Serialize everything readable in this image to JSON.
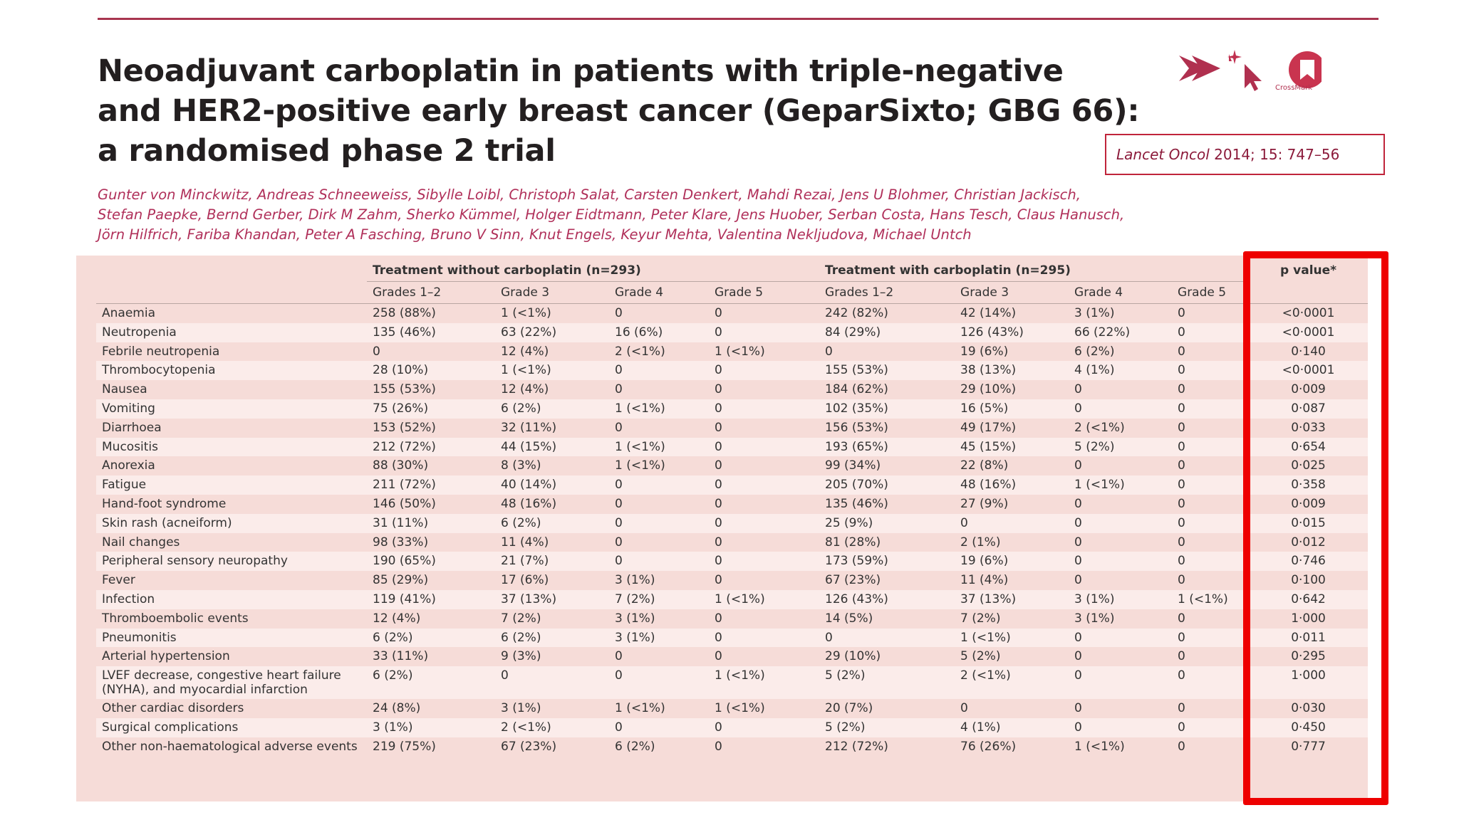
{
  "header": {
    "title_lines": [
      "Neoadjuvant carboplatin in patients with triple-negative",
      "and HER2-positive early breast cancer (GeparSixto; GBG 66):",
      "a randomised phase 2 trial"
    ],
    "crossmark": "CrossMark",
    "citation": {
      "journal": "Lancet Oncol",
      "ref": "2014; 15: 747–56"
    },
    "authors_lines": [
      "Gunter von Minckwitz, Andreas Schneeweiss, Sibylle Loibl, Christoph Salat, Carsten Denkert, Mahdi Rezai, Jens U Blohmer, Christian Jackisch,",
      "Stefan Paepke, Bernd Gerber, Dirk M Zahm, Sherko Kümmel, Holger Eidtmann, Peter Klare, Jens Huober, Serban Costa, Hans Tesch, Claus Hanusch,",
      "Jörn Hilfrich, Fariba Khandan, Peter A Fasching, Bruno V Sinn, Knut Engels, Keyur Mehta, Valentina Nekljudova, Michael Untch"
    ]
  },
  "table": {
    "groups": [
      "Treatment without carboplatin (n=293)",
      "Treatment with carboplatin (n=295)"
    ],
    "p_header": "p value*",
    "subheaders": [
      "Grades 1–2",
      "Grade 3",
      "Grade 4",
      "Grade 5",
      "Grades 1–2",
      "Grade 3",
      "Grade 4",
      "Grade 5"
    ],
    "rows": [
      {
        "label": "Anaemia",
        "cells": [
          "258 (88%)",
          "1 (<1%)",
          "0",
          "0",
          "242 (82%)",
          "42 (14%)",
          "3 (1%)",
          "0"
        ],
        "p": "<0·0001"
      },
      {
        "label": "Neutropenia",
        "cells": [
          "135 (46%)",
          "63 (22%)",
          "16 (6%)",
          "0",
          "84 (29%)",
          "126 (43%)",
          "66 (22%)",
          "0"
        ],
        "p": "<0·0001"
      },
      {
        "label": "Febrile neutropenia",
        "cells": [
          "0",
          "12 (4%)",
          "2 (<1%)",
          "1 (<1%)",
          "0",
          "19 (6%)",
          "6 (2%)",
          "0"
        ],
        "p": "0·140"
      },
      {
        "label": "Thrombocytopenia",
        "cells": [
          "28 (10%)",
          "1 (<1%)",
          "0",
          "0",
          "155 (53%)",
          "38 (13%)",
          "4 (1%)",
          "0"
        ],
        "p": "<0·0001"
      },
      {
        "label": "Nausea",
        "cells": [
          "155 (53%)",
          "12 (4%)",
          "0",
          "0",
          "184 (62%)",
          "29 (10%)",
          "0",
          "0"
        ],
        "p": "0·009"
      },
      {
        "label": "Vomiting",
        "cells": [
          "75 (26%)",
          "6 (2%)",
          "1 (<1%)",
          "0",
          "102 (35%)",
          "16 (5%)",
          "0",
          "0"
        ],
        "p": "0·087"
      },
      {
        "label": "Diarrhoea",
        "cells": [
          "153 (52%)",
          "32 (11%)",
          "0",
          "0",
          "156 (53%)",
          "49 (17%)",
          "2 (<1%)",
          "0"
        ],
        "p": "0·033"
      },
      {
        "label": "Mucositis",
        "cells": [
          "212 (72%)",
          "44 (15%)",
          "1 (<1%)",
          "0",
          "193 (65%)",
          "45 (15%)",
          "5 (2%)",
          "0"
        ],
        "p": "0·654"
      },
      {
        "label": "Anorexia",
        "cells": [
          "88 (30%)",
          "8 (3%)",
          "1 (<1%)",
          "0",
          "99 (34%)",
          "22 (8%)",
          "0",
          "0"
        ],
        "p": "0·025"
      },
      {
        "label": "Fatigue",
        "cells": [
          "211 (72%)",
          "40 (14%)",
          "0",
          "0",
          "205 (70%)",
          "48 (16%)",
          "1 (<1%)",
          "0"
        ],
        "p": "0·358"
      },
      {
        "label": "Hand-foot syndrome",
        "cells": [
          "146 (50%)",
          "48 (16%)",
          "0",
          "0",
          "135 (46%)",
          "27 (9%)",
          "0",
          "0"
        ],
        "p": "0·009"
      },
      {
        "label": "Skin rash (acneiform)",
        "cells": [
          "31 (11%)",
          "6 (2%)",
          "0",
          "0",
          "25 (9%)",
          "0",
          "0",
          "0"
        ],
        "p": "0·015"
      },
      {
        "label": "Nail changes",
        "cells": [
          "98 (33%)",
          "11 (4%)",
          "0",
          "0",
          "81 (28%)",
          "2 (1%)",
          "0",
          "0"
        ],
        "p": "0·012"
      },
      {
        "label": "Peripheral sensory neuropathy",
        "cells": [
          "190 (65%)",
          "21 (7%)",
          "0",
          "0",
          "173 (59%)",
          "19 (6%)",
          "0",
          "0"
        ],
        "p": "0·746"
      },
      {
        "label": "Fever",
        "cells": [
          "85 (29%)",
          "17 (6%)",
          "3 (1%)",
          "0",
          "67 (23%)",
          "11 (4%)",
          "0",
          "0"
        ],
        "p": "0·100"
      },
      {
        "label": "Infection",
        "cells": [
          "119 (41%)",
          "37 (13%)",
          "7 (2%)",
          "1 (<1%)",
          "126 (43%)",
          "37 (13%)",
          "3 (1%)",
          "1 (<1%)"
        ],
        "p": "0·642"
      },
      {
        "label": "Thromboembolic events",
        "cells": [
          "12 (4%)",
          "7 (2%)",
          "3 (1%)",
          "0",
          "14 (5%)",
          "7 (2%)",
          "3 (1%)",
          "0"
        ],
        "p": "1·000"
      },
      {
        "label": "Pneumonitis",
        "cells": [
          "6 (2%)",
          "6 (2%)",
          "3 (1%)",
          "0",
          "0",
          "1 (<1%)",
          "0",
          "0"
        ],
        "p": "0·011"
      },
      {
        "label": "Arterial hypertension",
        "cells": [
          "33 (11%)",
          "9 (3%)",
          "0",
          "0",
          "29 (10%)",
          "5 (2%)",
          "0",
          "0"
        ],
        "p": "0·295"
      },
      {
        "label": "LVEF decrease, congestive heart failure (NYHA), and myocardial infarction",
        "cells": [
          "6 (2%)",
          "0",
          "0",
          "1 (<1%)",
          "5 (2%)",
          "2 (<1%)",
          "0",
          "0"
        ],
        "p": "1·000"
      },
      {
        "label": "Other cardiac disorders",
        "cells": [
          "24 (8%)",
          "3 (1%)",
          "1 (<1%)",
          "1 (<1%)",
          "20 (7%)",
          "0",
          "0",
          "0"
        ],
        "p": "0·030"
      },
      {
        "label": "Surgical complications",
        "cells": [
          "3 (1%)",
          "2 (<1%)",
          "0",
          "0",
          "5 (2%)",
          "4 (1%)",
          "0",
          "0"
        ],
        "p": "0·450"
      },
      {
        "label": "Other non-haematological adverse events",
        "cells": [
          "219 (75%)",
          "67 (23%)",
          "6 (2%)",
          "0",
          "212 (72%)",
          "76 (26%)",
          "1 (<1%)",
          "0"
        ],
        "p": "0·777"
      }
    ]
  }
}
